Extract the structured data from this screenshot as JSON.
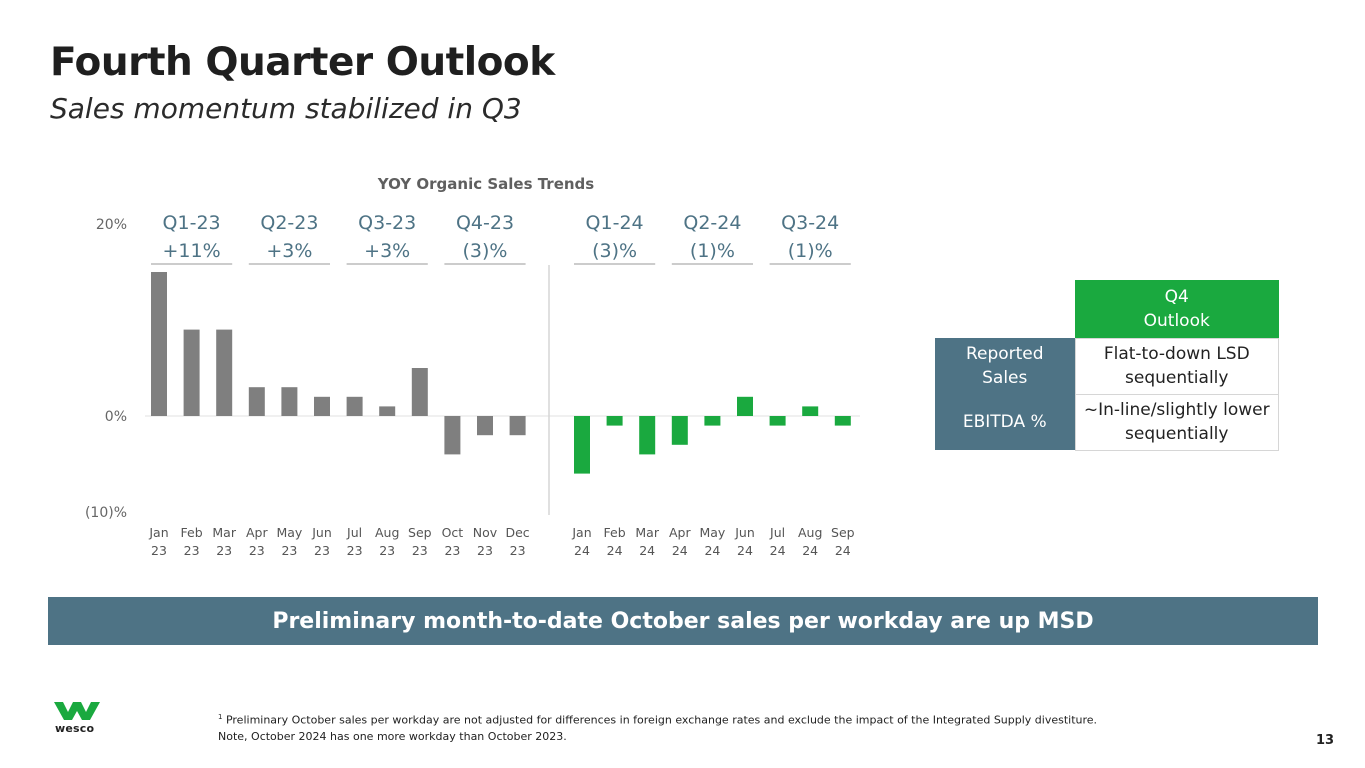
{
  "header": {
    "title": "Fourth Quarter Outlook",
    "subtitle": "Sales momentum stabilized in Q3"
  },
  "chart_data": {
    "type": "bar",
    "title": "YOY Organic Sales Trends",
    "ylim": [
      -10,
      20
    ],
    "y_ticks": [
      {
        "value": 20,
        "label": "20%"
      },
      {
        "value": 0,
        "label": "0%"
      },
      {
        "value": -10,
        "label": "(10)%"
      }
    ],
    "series": [
      {
        "name": "2023",
        "color": "#7f7f7f",
        "months": [
          "Jan",
          "Feb",
          "Mar",
          "Apr",
          "May",
          "Jun",
          "Jul",
          "Aug",
          "Sep",
          "Oct",
          "Nov",
          "Dec"
        ],
        "year": "23",
        "values": [
          15,
          9,
          9,
          3,
          3,
          2,
          2,
          1,
          5,
          -4,
          -2,
          -2
        ]
      },
      {
        "name": "2024",
        "color": "#1aa93f",
        "months": [
          "Jan",
          "Feb",
          "Mar",
          "Apr",
          "May",
          "Jun",
          "Jul",
          "Aug",
          "Sep"
        ],
        "year": "24",
        "values": [
          -6,
          -1,
          -4,
          -3,
          -1,
          2,
          -1,
          1,
          -1
        ]
      }
    ],
    "quarters": [
      {
        "label": "Q1-23",
        "value": "+11%",
        "series": 0,
        "start": 0,
        "end": 2
      },
      {
        "label": "Q2-23",
        "value": "+3%",
        "series": 0,
        "start": 3,
        "end": 5
      },
      {
        "label": "Q3-23",
        "value": "+3%",
        "series": 0,
        "start": 6,
        "end": 8
      },
      {
        "label": "Q4-23",
        "value": "(3)%",
        "series": 0,
        "start": 9,
        "end": 11
      },
      {
        "label": "Q1-24",
        "value": "(3)%",
        "series": 1,
        "start": 0,
        "end": 2
      },
      {
        "label": "Q2-24",
        "value": "(1)%",
        "series": 1,
        "start": 3,
        "end": 5
      },
      {
        "label": "Q3-24",
        "value": "(1)%",
        "series": 1,
        "start": 6,
        "end": 8
      }
    ]
  },
  "outlook_table": {
    "header": "Q4\nOutlook",
    "rows": [
      {
        "label": "Reported\nSales",
        "value": "Flat-to-down LSD\nsequentially"
      },
      {
        "label": "EBITDA %",
        "value": "~In-line/slightly lower\nsequentially"
      }
    ]
  },
  "banner": {
    "text": "Preliminary month-to-date October sales per workday are up MSD"
  },
  "logo": {
    "word": "wesco",
    "color": "#1aa93f"
  },
  "footnote": {
    "marker": "1",
    "line1": " Preliminary October  sales per workday are not adjusted for differences in foreign exchange rates and exclude the impact of the Integrated Supply divestiture.",
    "line2": "Note, October 2024 has one more workday than October 2023."
  },
  "page_number": "13"
}
